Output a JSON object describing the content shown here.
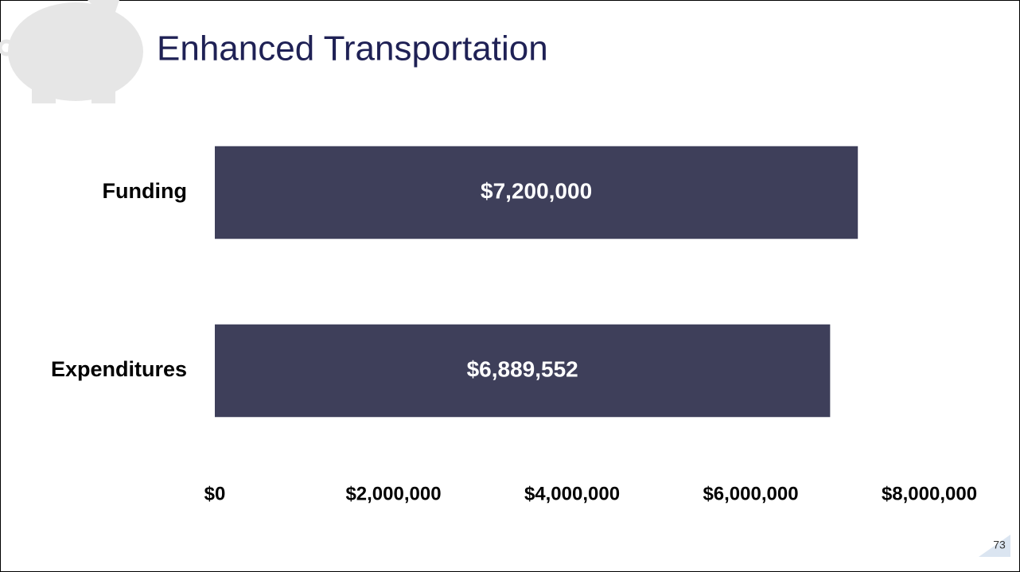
{
  "chart_data": {
    "type": "barh",
    "title": "Enhanced Transportation",
    "categories": [
      "Funding",
      "Expenditures"
    ],
    "values": [
      7200000,
      6889552
    ],
    "value_labels": [
      "$7,200,000",
      "$6,889,552"
    ],
    "color": "#3e3f5a",
    "xlim": [
      0,
      8000000
    ],
    "xticks": [
      {
        "value": 0,
        "label": "$0"
      },
      {
        "value": 2000000,
        "label": "$2,000,000"
      },
      {
        "value": 4000000,
        "label": "$4,000,000"
      },
      {
        "value": 6000000,
        "label": "$6,000,000"
      },
      {
        "value": 8000000,
        "label": "$8,000,000"
      }
    ],
    "grid": false
  },
  "slide": {
    "page_number": "73"
  }
}
